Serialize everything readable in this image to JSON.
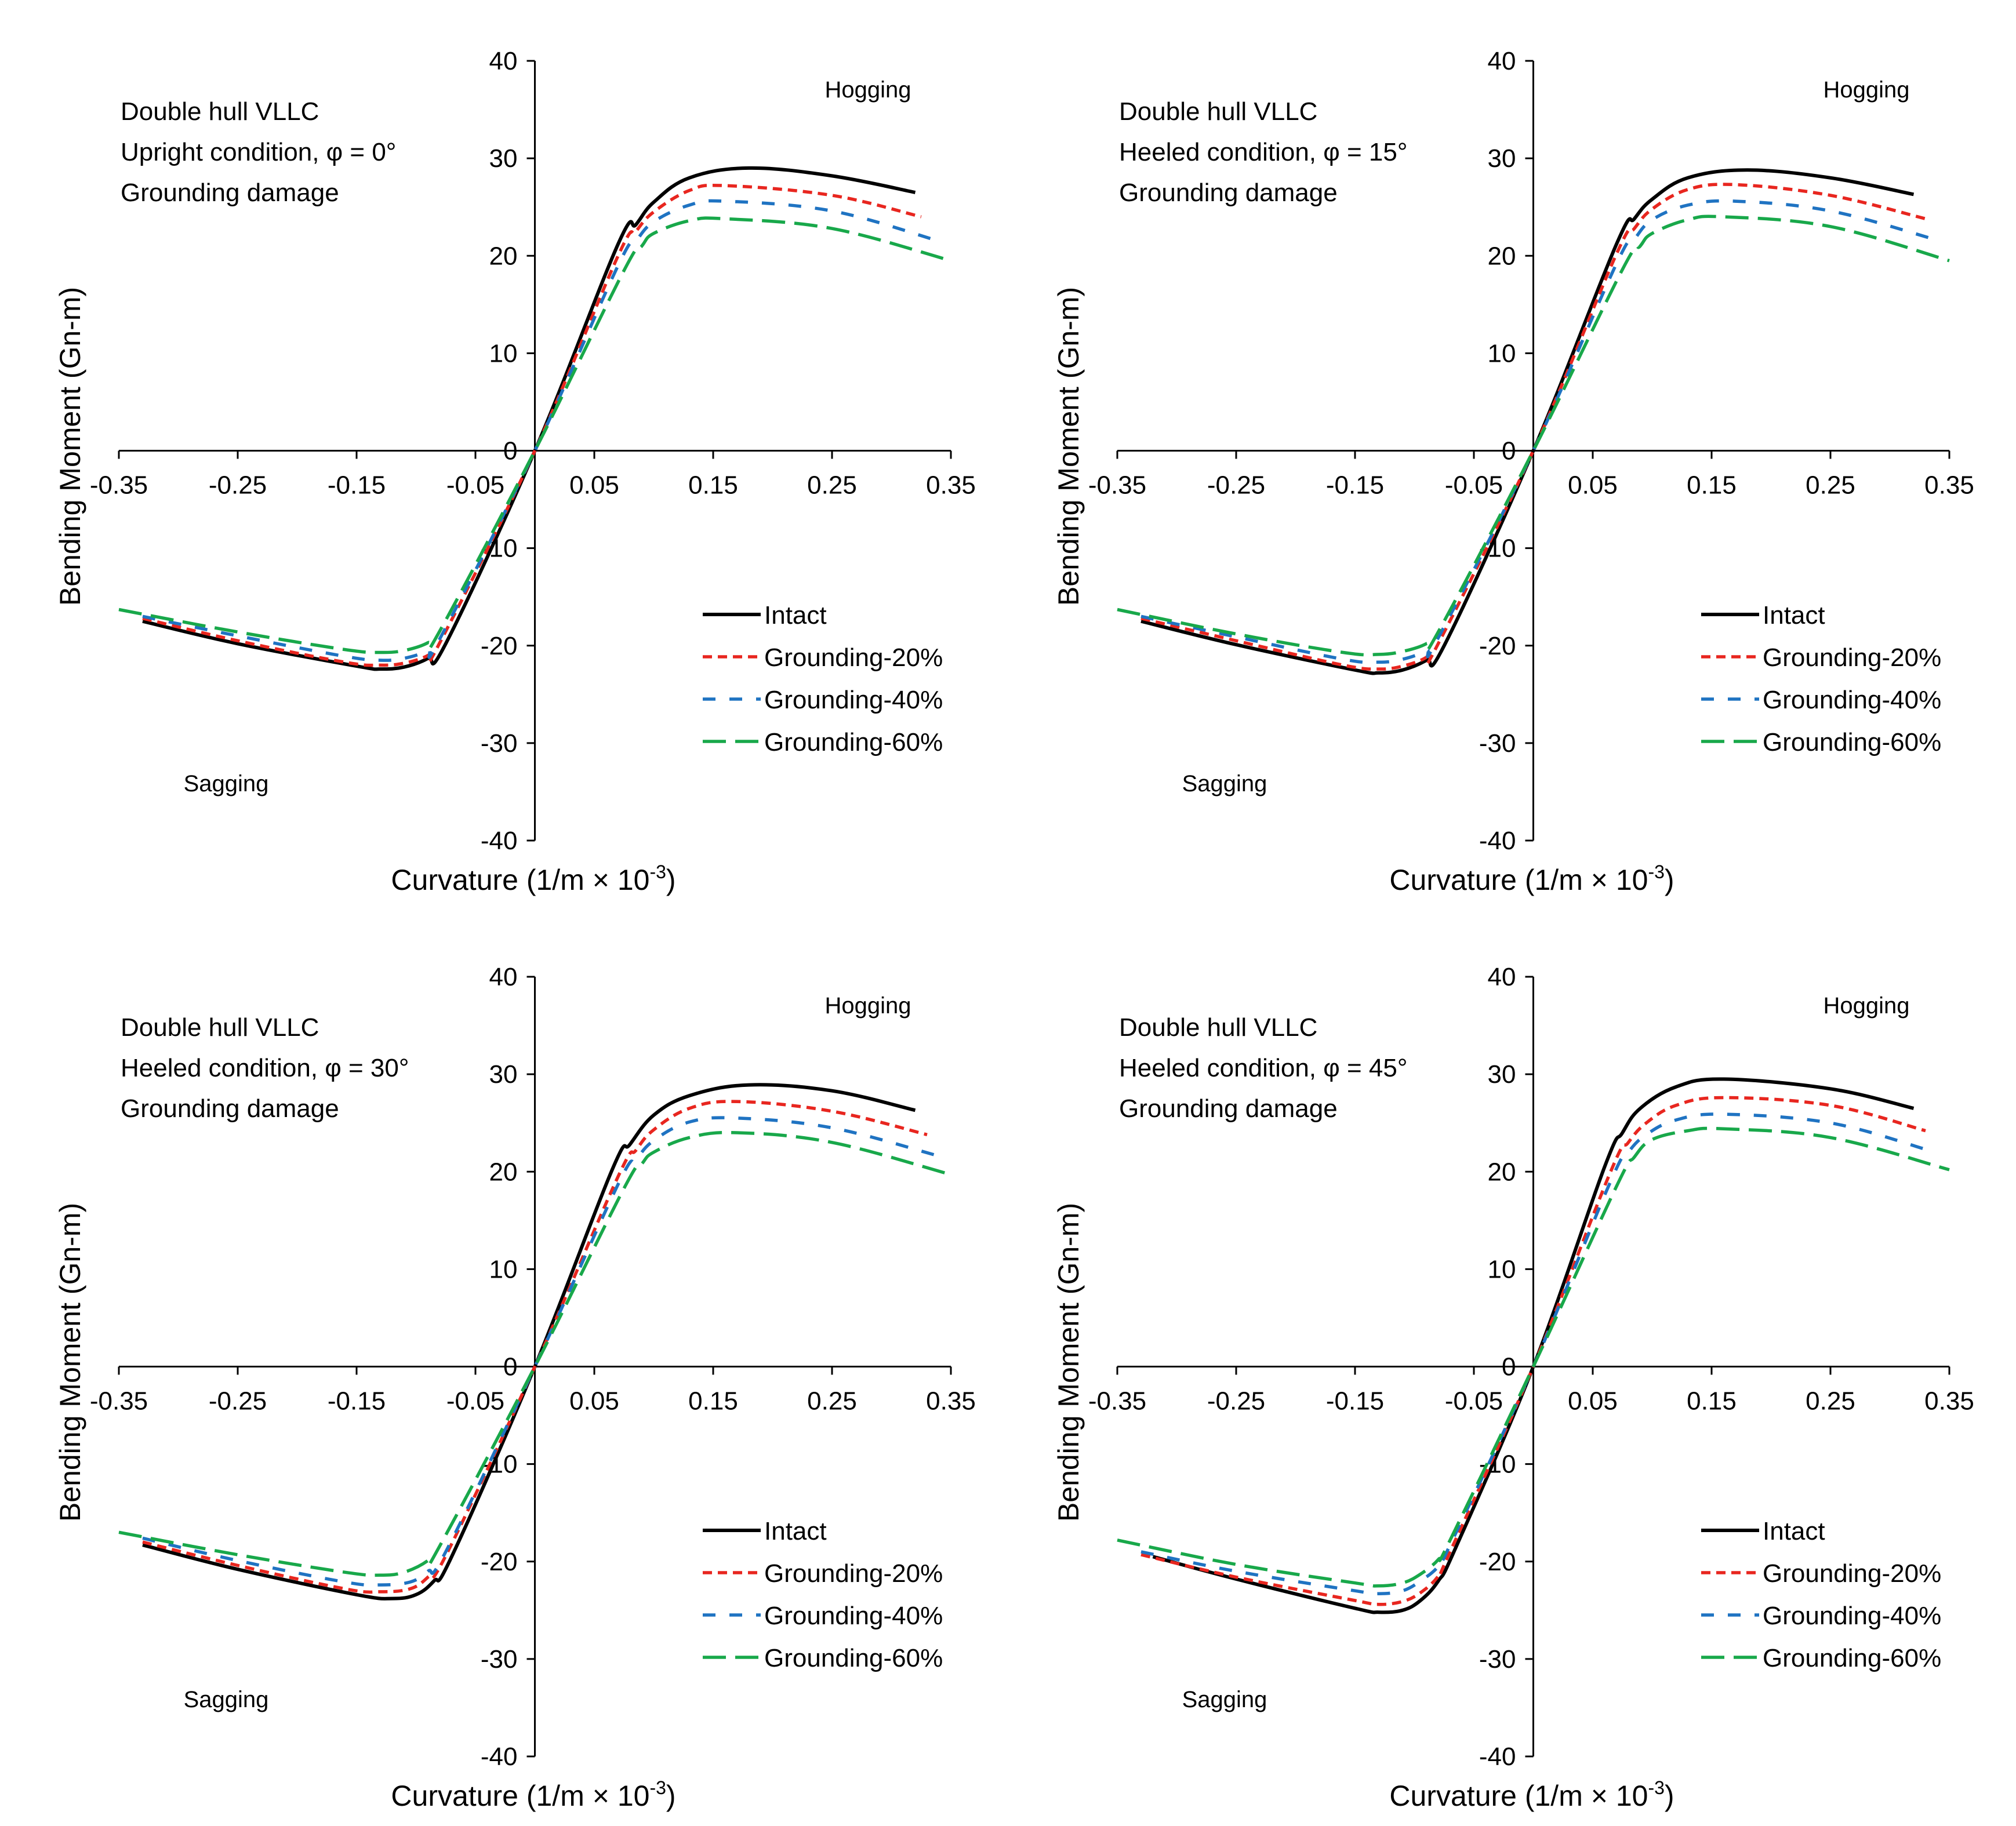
{
  "figure": {
    "name": "bending-moment-curvature-figure"
  },
  "colors": {
    "Intact": "#000000",
    "Grounding-20%": "#e8261f",
    "Grounding-40%": "#1f73c2",
    "Grounding-60%": "#18a84a"
  },
  "chart_data": [
    {
      "type": "line",
      "notes": [
        "Double hull VLLC",
        "Upright condition, φ = 0°",
        "Grounding damage"
      ],
      "xlabel": "Curvature (1/m × 10",
      "xlabel_sup": "-3",
      "xlabel_end": ")",
      "ylabel": "Bending Moment (Gn-m)",
      "xlim": [
        -0.35,
        0.35
      ],
      "ylim": [
        -40,
        40
      ],
      "xticks": [
        "-0.35",
        "-0.25",
        "-0.15",
        "-0.05",
        "0.05",
        "0.15",
        "0.25",
        "0.35"
      ],
      "yticks": [
        "40",
        "30",
        "20",
        "10",
        "0",
        "-10",
        "-20",
        "-30",
        "-40"
      ],
      "region_labels": {
        "hogging": "Hogging",
        "sagging": "Sagging"
      },
      "series": [
        {
          "name": "Intact",
          "x": [
            -0.33,
            -0.25,
            -0.15,
            -0.13,
            -0.11,
            -0.09,
            -0.075,
            0,
            0.07,
            0.085,
            0.1,
            0.13,
            0.18,
            0.25,
            0.32
          ],
          "y": [
            -17.5,
            -19.8,
            -22.1,
            -22.4,
            -22.2,
            -21.3,
            -19.8,
            0,
            21.2,
            23.2,
            25.5,
            28.0,
            29.0,
            28.2,
            26.5
          ]
        },
        {
          "name": "Grounding-20%",
          "x": [
            -0.33,
            -0.25,
            -0.16,
            -0.13,
            -0.11,
            -0.09,
            -0.08,
            0,
            0.07,
            0.085,
            0.1,
            0.13,
            0.16,
            0.25,
            0.325
          ],
          "y": [
            -17.2,
            -19.5,
            -21.7,
            -22.0,
            -21.8,
            -21.0,
            -19.7,
            0,
            20.0,
            22.5,
            24.5,
            26.7,
            27.2,
            26.2,
            24.0
          ]
        },
        {
          "name": "Grounding-40%",
          "x": [
            -0.33,
            -0.25,
            -0.16,
            -0.13,
            -0.11,
            -0.09,
            -0.08,
            0,
            0.07,
            0.085,
            0.1,
            0.13,
            0.16,
            0.25,
            0.34
          ],
          "y": [
            -17.0,
            -19.0,
            -21.1,
            -21.5,
            -21.3,
            -20.5,
            -19.3,
            0,
            19.0,
            21.5,
            23.5,
            25.2,
            25.6,
            24.6,
            21.5
          ]
        },
        {
          "name": "Grounding-60%",
          "x": [
            -0.35,
            -0.25,
            -0.16,
            -0.13,
            -0.11,
            -0.09,
            -0.08,
            0,
            0.075,
            0.09,
            0.1,
            0.13,
            0.16,
            0.25,
            0.35
          ],
          "y": [
            -16.3,
            -18.6,
            -20.4,
            -20.7,
            -20.5,
            -19.7,
            -18.5,
            0,
            18.5,
            21.0,
            22.3,
            23.6,
            23.8,
            22.8,
            19.5
          ]
        }
      ]
    },
    {
      "type": "line",
      "notes": [
        "Double hull VLLC",
        "Heeled condition, φ = 15°",
        "Grounding damage"
      ],
      "xlabel": "Curvature (1/m × 10",
      "xlabel_sup": "-3",
      "xlabel_end": ")",
      "ylabel": "Bending Moment (Gn-m)",
      "xlim": [
        -0.35,
        0.35
      ],
      "ylim": [
        -40,
        40
      ],
      "xticks": [
        "-0.35",
        "-0.25",
        "-0.15",
        "-0.05",
        "0.05",
        "0.15",
        "0.25",
        "0.35"
      ],
      "yticks": [
        "40",
        "30",
        "20",
        "10",
        "0",
        "-10",
        "-20",
        "-30",
        "-40"
      ],
      "region_labels": {
        "hogging": "Hogging",
        "sagging": "Sagging"
      },
      "series": [
        {
          "name": "Intact",
          "x": [
            -0.33,
            -0.25,
            -0.15,
            -0.13,
            -0.11,
            -0.09,
            -0.075,
            0,
            0.07,
            0.085,
            0.1,
            0.13,
            0.18,
            0.25,
            0.32
          ],
          "y": [
            -17.5,
            -19.9,
            -22.5,
            -22.8,
            -22.5,
            -21.5,
            -20.0,
            0,
            21.2,
            23.8,
            25.8,
            28.0,
            28.8,
            28.0,
            26.3
          ]
        },
        {
          "name": "Grounding-20%",
          "x": [
            -0.33,
            -0.25,
            -0.16,
            -0.13,
            -0.11,
            -0.09,
            -0.08,
            0,
            0.07,
            0.085,
            0.1,
            0.13,
            0.17,
            0.25,
            0.33
          ],
          "y": [
            -17.2,
            -19.5,
            -22.0,
            -22.4,
            -22.1,
            -21.2,
            -19.8,
            0,
            20.2,
            22.8,
            24.8,
            26.8,
            27.3,
            26.2,
            23.8
          ]
        },
        {
          "name": "Grounding-40%",
          "x": [
            -0.33,
            -0.25,
            -0.16,
            -0.13,
            -0.11,
            -0.09,
            -0.08,
            0,
            0.07,
            0.085,
            0.1,
            0.13,
            0.17,
            0.25,
            0.34
          ],
          "y": [
            -17.0,
            -19.1,
            -21.4,
            -21.7,
            -21.4,
            -20.5,
            -19.2,
            0,
            19.2,
            21.7,
            23.7,
            25.2,
            25.6,
            24.6,
            21.6
          ]
        },
        {
          "name": "Grounding-60%",
          "x": [
            -0.35,
            -0.25,
            -0.16,
            -0.13,
            -0.11,
            -0.09,
            -0.08,
            0,
            0.075,
            0.09,
            0.1,
            0.13,
            0.16,
            0.25,
            0.35
          ],
          "y": [
            -16.3,
            -18.8,
            -20.7,
            -20.9,
            -20.6,
            -19.8,
            -18.6,
            0,
            18.6,
            21.0,
            22.3,
            23.7,
            24.0,
            23.0,
            19.5
          ]
        }
      ]
    },
    {
      "type": "line",
      "notes": [
        "Double hull VLLC",
        "Heeled condition, φ = 30°",
        "Grounding damage"
      ],
      "xlabel": "Curvature (1/m × 10",
      "xlabel_sup": "-3",
      "xlabel_end": ")",
      "ylabel": "Bending Moment (Gn-m)",
      "xlim": [
        -0.35,
        0.35
      ],
      "ylim": [
        -40,
        40
      ],
      "xticks": [
        "-0.35",
        "-0.25",
        "-0.15",
        "-0.05",
        "0.05",
        "0.15",
        "0.25",
        "0.35"
      ],
      "yticks": [
        "40",
        "30",
        "20",
        "10",
        "0",
        "-10",
        "-20",
        "-30",
        "-40"
      ],
      "region_labels": {
        "hogging": "Hogging",
        "sagging": "Sagging"
      },
      "series": [
        {
          "name": "Intact",
          "x": [
            -0.33,
            -0.25,
            -0.15,
            -0.12,
            -0.1,
            -0.085,
            -0.07,
            0,
            0.065,
            0.08,
            0.1,
            0.13,
            0.18,
            0.25,
            0.32
          ],
          "y": [
            -18.3,
            -20.8,
            -23.4,
            -23.8,
            -23.4,
            -22.0,
            -19.5,
            0,
            20.2,
            22.8,
            25.8,
            27.8,
            28.9,
            28.3,
            26.3
          ]
        },
        {
          "name": "Grounding-20%",
          "x": [
            -0.33,
            -0.25,
            -0.16,
            -0.13,
            -0.105,
            -0.09,
            -0.075,
            0,
            0.07,
            0.085,
            0.1,
            0.13,
            0.17,
            0.25,
            0.33
          ],
          "y": [
            -18.0,
            -20.4,
            -22.8,
            -23.1,
            -22.8,
            -21.6,
            -19.4,
            0,
            19.5,
            22.2,
            24.3,
            26.5,
            27.2,
            26.2,
            23.8
          ]
        },
        {
          "name": "Grounding-40%",
          "x": [
            -0.33,
            -0.25,
            -0.16,
            -0.13,
            -0.105,
            -0.09,
            -0.075,
            0,
            0.07,
            0.085,
            0.1,
            0.13,
            0.17,
            0.25,
            0.34
          ],
          "y": [
            -17.6,
            -19.9,
            -22.1,
            -22.4,
            -22.1,
            -21.0,
            -19.0,
            0,
            18.7,
            21.2,
            23.2,
            25.1,
            25.5,
            24.5,
            21.6
          ]
        },
        {
          "name": "Grounding-60%",
          "x": [
            -0.35,
            -0.25,
            -0.16,
            -0.13,
            -0.11,
            -0.09,
            -0.08,
            0,
            0.075,
            0.09,
            0.1,
            0.13,
            0.17,
            0.25,
            0.35
          ],
          "y": [
            -17.0,
            -19.3,
            -21.1,
            -21.4,
            -21.1,
            -19.9,
            -18.4,
            0,
            18.3,
            20.8,
            22.0,
            23.5,
            24.0,
            23.0,
            19.7
          ]
        }
      ]
    },
    {
      "type": "line",
      "notes": [
        "Double hull VLLC",
        "Heeled condition, φ = 45°",
        "Grounding damage"
      ],
      "xlabel": "Curvature (1/m × 10",
      "xlabel_sup": "-3",
      "xlabel_end": ")",
      "ylabel": "Bending Moment (Gn-m)",
      "xlim": [
        -0.35,
        0.35
      ],
      "ylim": [
        -40,
        40
      ],
      "xticks": [
        "-0.35",
        "-0.25",
        "-0.15",
        "-0.05",
        "0.05",
        "0.15",
        "0.25",
        "0.35"
      ],
      "yticks": [
        "40",
        "30",
        "20",
        "10",
        "0",
        "-10",
        "-20",
        "-30",
        "-40"
      ],
      "region_labels": {
        "hogging": "Hogging",
        "sagging": "Sagging"
      },
      "series": [
        {
          "name": "Intact",
          "x": [
            -0.32,
            -0.25,
            -0.15,
            -0.13,
            -0.11,
            -0.095,
            -0.08,
            -0.065,
            0,
            0.06,
            0.075,
            0.09,
            0.12,
            0.16,
            0.25,
            0.32
          ],
          "y": [
            -19.5,
            -21.8,
            -24.8,
            -25.2,
            -25.0,
            -24.0,
            -22.0,
            -18.5,
            0,
            20.5,
            24.0,
            26.5,
            28.7,
            29.5,
            28.5,
            26.5
          ]
        },
        {
          "name": "Grounding-20%",
          "x": [
            -0.33,
            -0.25,
            -0.15,
            -0.13,
            -0.11,
            -0.095,
            -0.08,
            -0.07,
            0,
            0.065,
            0.08,
            0.095,
            0.12,
            0.16,
            0.25,
            0.33
          ],
          "y": [
            -19.3,
            -21.6,
            -24.0,
            -24.4,
            -24.1,
            -23.2,
            -21.5,
            -19.0,
            0,
            20.0,
            23.0,
            25.0,
            26.8,
            27.6,
            26.8,
            24.2
          ]
        },
        {
          "name": "Grounding-40%",
          "x": [
            -0.33,
            -0.25,
            -0.15,
            -0.13,
            -0.11,
            -0.095,
            -0.08,
            -0.07,
            0,
            0.065,
            0.08,
            0.095,
            0.12,
            0.16,
            0.25,
            0.33
          ],
          "y": [
            -19.0,
            -21.0,
            -23.0,
            -23.3,
            -23.0,
            -22.0,
            -20.5,
            -18.3,
            0,
            19.0,
            22.0,
            23.8,
            25.3,
            25.9,
            25.0,
            22.3
          ]
        },
        {
          "name": "Grounding-60%",
          "x": [
            -0.35,
            -0.25,
            -0.15,
            -0.13,
            -0.11,
            -0.095,
            -0.08,
            -0.07,
            0,
            0.07,
            0.085,
            0.1,
            0.13,
            0.16,
            0.25,
            0.35
          ],
          "y": [
            -17.8,
            -20.3,
            -22.2,
            -22.5,
            -22.2,
            -21.3,
            -19.8,
            -17.8,
            0,
            18.5,
            21.5,
            23.3,
            24.2,
            24.4,
            23.5,
            20.2
          ]
        }
      ]
    }
  ]
}
